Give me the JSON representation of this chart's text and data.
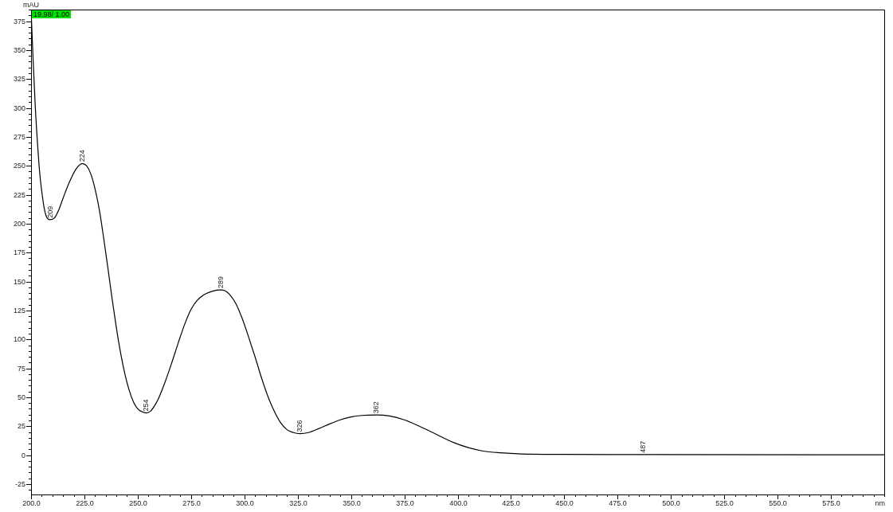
{
  "chart_data": {
    "type": "line",
    "xlabel": "nm",
    "ylabel": "mAU",
    "xlim": [
      200,
      600
    ],
    "ylim": [
      -34,
      385
    ],
    "xticks": [
      {
        "value": 200,
        "label": "200.0"
      },
      {
        "value": 205,
        "label": null
      },
      {
        "value": 210,
        "label": null
      },
      {
        "value": 215,
        "label": null
      },
      {
        "value": 220,
        "label": null
      },
      {
        "value": 225,
        "label": "225.0"
      },
      {
        "value": 230,
        "label": null
      },
      {
        "value": 235,
        "label": null
      },
      {
        "value": 240,
        "label": null
      },
      {
        "value": 245,
        "label": null
      },
      {
        "value": 250,
        "label": "250.0"
      },
      {
        "value": 255,
        "label": null
      },
      {
        "value": 260,
        "label": null
      },
      {
        "value": 265,
        "label": null
      },
      {
        "value": 270,
        "label": null
      },
      {
        "value": 275,
        "label": "275.0"
      },
      {
        "value": 280,
        "label": null
      },
      {
        "value": 285,
        "label": null
      },
      {
        "value": 290,
        "label": null
      },
      {
        "value": 295,
        "label": null
      },
      {
        "value": 300,
        "label": "300.0"
      },
      {
        "value": 305,
        "label": null
      },
      {
        "value": 310,
        "label": null
      },
      {
        "value": 315,
        "label": null
      },
      {
        "value": 320,
        "label": null
      },
      {
        "value": 325,
        "label": "325.0"
      },
      {
        "value": 330,
        "label": null
      },
      {
        "value": 335,
        "label": null
      },
      {
        "value": 340,
        "label": null
      },
      {
        "value": 345,
        "label": null
      },
      {
        "value": 350,
        "label": "350.0"
      },
      {
        "value": 355,
        "label": null
      },
      {
        "value": 360,
        "label": null
      },
      {
        "value": 365,
        "label": null
      },
      {
        "value": 370,
        "label": null
      },
      {
        "value": 375,
        "label": "375.0"
      },
      {
        "value": 380,
        "label": null
      },
      {
        "value": 385,
        "label": null
      },
      {
        "value": 390,
        "label": null
      },
      {
        "value": 395,
        "label": null
      },
      {
        "value": 400,
        "label": "400.0"
      },
      {
        "value": 405,
        "label": null
      },
      {
        "value": 410,
        "label": null
      },
      {
        "value": 415,
        "label": null
      },
      {
        "value": 420,
        "label": null
      },
      {
        "value": 425,
        "label": "425.0"
      },
      {
        "value": 430,
        "label": null
      },
      {
        "value": 435,
        "label": null
      },
      {
        "value": 440,
        "label": null
      },
      {
        "value": 445,
        "label": null
      },
      {
        "value": 450,
        "label": "450.0"
      },
      {
        "value": 455,
        "label": null
      },
      {
        "value": 460,
        "label": null
      },
      {
        "value": 465,
        "label": null
      },
      {
        "value": 470,
        "label": null
      },
      {
        "value": 475,
        "label": "475.0"
      },
      {
        "value": 480,
        "label": null
      },
      {
        "value": 485,
        "label": null
      },
      {
        "value": 490,
        "label": null
      },
      {
        "value": 495,
        "label": null
      },
      {
        "value": 500,
        "label": "500.0"
      },
      {
        "value": 505,
        "label": null
      },
      {
        "value": 510,
        "label": null
      },
      {
        "value": 515,
        "label": null
      },
      {
        "value": 520,
        "label": null
      },
      {
        "value": 525,
        "label": "525.0"
      },
      {
        "value": 530,
        "label": null
      },
      {
        "value": 535,
        "label": null
      },
      {
        "value": 540,
        "label": null
      },
      {
        "value": 545,
        "label": null
      },
      {
        "value": 550,
        "label": "550.0"
      },
      {
        "value": 555,
        "label": null
      },
      {
        "value": 560,
        "label": null
      },
      {
        "value": 565,
        "label": null
      },
      {
        "value": 570,
        "label": null
      },
      {
        "value": 575,
        "label": "575.0"
      },
      {
        "value": 580,
        "label": null
      },
      {
        "value": 585,
        "label": null
      },
      {
        "value": 590,
        "label": null
      },
      {
        "value": 595,
        "label": null
      },
      {
        "value": 600,
        "label": null
      }
    ],
    "yticks": [
      {
        "value": -30,
        "label": null
      },
      -25,
      {
        "value": -20,
        "label": null
      },
      {
        "value": -15,
        "label": null
      },
      {
        "value": -10,
        "label": null
      },
      {
        "value": -5,
        "label": null
      },
      0,
      {
        "value": 5,
        "label": null
      },
      {
        "value": 10,
        "label": null
      },
      {
        "value": 15,
        "label": null
      },
      {
        "value": 20,
        "label": null
      },
      25,
      {
        "value": 30,
        "label": null
      },
      {
        "value": 35,
        "label": null
      },
      {
        "value": 40,
        "label": null
      },
      {
        "value": 45,
        "label": null
      },
      50,
      {
        "value": 55,
        "label": null
      },
      {
        "value": 60,
        "label": null
      },
      {
        "value": 65,
        "label": null
      },
      {
        "value": 70,
        "label": null
      },
      75,
      {
        "value": 80,
        "label": null
      },
      {
        "value": 85,
        "label": null
      },
      {
        "value": 90,
        "label": null
      },
      {
        "value": 95,
        "label": null
      },
      100,
      {
        "value": 105,
        "label": null
      },
      {
        "value": 110,
        "label": null
      },
      {
        "value": 115,
        "label": null
      },
      {
        "value": 120,
        "label": null
      },
      125,
      {
        "value": 130,
        "label": null
      },
      {
        "value": 135,
        "label": null
      },
      {
        "value": 140,
        "label": null
      },
      {
        "value": 145,
        "label": null
      },
      150,
      {
        "value": 155,
        "label": null
      },
      {
        "value": 160,
        "label": null
      },
      {
        "value": 165,
        "label": null
      },
      {
        "value": 170,
        "label": null
      },
      175,
      {
        "value": 180,
        "label": null
      },
      {
        "value": 185,
        "label": null
      },
      {
        "value": 190,
        "label": null
      },
      {
        "value": 195,
        "label": null
      },
      200,
      {
        "value": 205,
        "label": null
      },
      {
        "value": 210,
        "label": null
      },
      {
        "value": 215,
        "label": null
      },
      {
        "value": 220,
        "label": null
      },
      225,
      {
        "value": 230,
        "label": null
      },
      {
        "value": 235,
        "label": null
      },
      {
        "value": 240,
        "label": null
      },
      {
        "value": 245,
        "label": null
      },
      250,
      {
        "value": 255,
        "label": null
      },
      {
        "value": 260,
        "label": null
      },
      {
        "value": 265,
        "label": null
      },
      {
        "value": 270,
        "label": null
      },
      275,
      {
        "value": 280,
        "label": null
      },
      {
        "value": 285,
        "label": null
      },
      {
        "value": 290,
        "label": null
      },
      {
        "value": 295,
        "label": null
      },
      300,
      {
        "value": 305,
        "label": null
      },
      {
        "value": 310,
        "label": null
      },
      {
        "value": 315,
        "label": null
      },
      {
        "value": 320,
        "label": null
      },
      325,
      {
        "value": 330,
        "label": null
      },
      {
        "value": 335,
        "label": null
      },
      {
        "value": 340,
        "label": null
      },
      {
        "value": 345,
        "label": null
      },
      350,
      {
        "value": 355,
        "label": null
      },
      {
        "value": 360,
        "label": null
      },
      {
        "value": 365,
        "label": null
      },
      {
        "value": 370,
        "label": null
      },
      375,
      {
        "value": 380,
        "label": null
      },
      {
        "value": 385,
        "label": null
      }
    ],
    "x": [
      200,
      201,
      202,
      203,
      204,
      205,
      206,
      207,
      208,
      209,
      211,
      213,
      215,
      218,
      221,
      224,
      226,
      228,
      230,
      232,
      234,
      236,
      238,
      240,
      242,
      244,
      246,
      248,
      250,
      252,
      254,
      256,
      258,
      260,
      263,
      266,
      269,
      272,
      275,
      278,
      281,
      284,
      287,
      289,
      291,
      293,
      296,
      299,
      302,
      305,
      308,
      311,
      314,
      317,
      320,
      323,
      326,
      330,
      335,
      340,
      345,
      350,
      355,
      362,
      368,
      375,
      382,
      390,
      398,
      405,
      412,
      420,
      430,
      450,
      487,
      600
    ],
    "series": [
      {
        "color": "#000000",
        "values": [
          385,
          340,
          300,
          270,
          245,
          228,
          215,
          207,
          204,
          203.5,
          205,
          212,
          222,
          236,
          247,
          252,
          250,
          243,
          230,
          212,
          188,
          162,
          135,
          110,
          88,
          70,
          56,
          46,
          40,
          37.5,
          36.5,
          38,
          43,
          50,
          64,
          80,
          97,
          113,
          126,
          134,
          138.5,
          141,
          142.5,
          142.8,
          142,
          139,
          131,
          118,
          102,
          85,
          67,
          51,
          38,
          28,
          22,
          19.5,
          18.6,
          19.5,
          23,
          27,
          30.5,
          33,
          34.3,
          34.7,
          33.8,
          30.5,
          25,
          18,
          11,
          6.5,
          3.5,
          2,
          1,
          0.6,
          0.5,
          0.3
        ]
      }
    ],
    "annotations": [
      "19.98/ 1.00",
      {
        "text": "209",
        "x": 209,
        "y": 203.5
      },
      {
        "text": "224",
        "x": 224,
        "y": 252
      },
      {
        "text": "254",
        "x": 254,
        "y": 36.5
      },
      {
        "text": "289",
        "x": 289,
        "y": 142.8
      },
      {
        "text": "326",
        "x": 326,
        "y": 18.6
      },
      {
        "text": "362",
        "x": 362,
        "y": 34.7
      },
      {
        "text": "487",
        "x": 487,
        "y": 0.5
      }
    ]
  }
}
